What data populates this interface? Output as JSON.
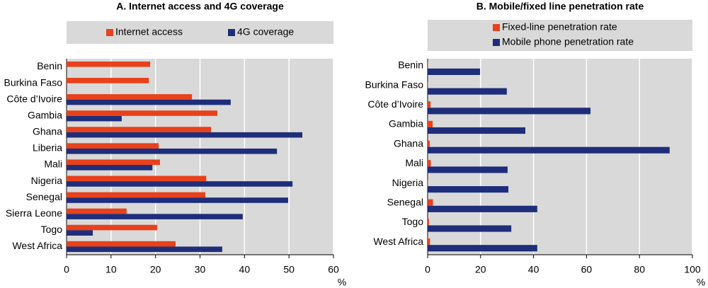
{
  "chart_data": [
    {
      "type": "bar",
      "orientation": "horizontal",
      "title": "A. Internet access and 4G coverage",
      "xlabel": "%",
      "categories": [
        "Benin",
        "Burkina Faso",
        "Côte d’Ivoire",
        "Gambia",
        "Ghana",
        "Liberia",
        "Mali",
        "Nigeria",
        "Senegal",
        "Sierra Leone",
        "Togo",
        "West Africa"
      ],
      "series": [
        {
          "name": "Internet access",
          "color": "#e8411b",
          "values": [
            18.8,
            18.5,
            28.2,
            33.9,
            32.5,
            20.7,
            21.0,
            31.4,
            31.2,
            13.5,
            20.4,
            24.5
          ]
        },
        {
          "name": "4G coverage",
          "color": "#1f2e7a",
          "values": [
            null,
            null,
            36.9,
            12.4,
            53.0,
            47.3,
            19.3,
            50.8,
            49.8,
            39.6,
            5.9,
            35.0
          ]
        }
      ],
      "xlim": [
        0,
        60
      ],
      "xticks": [
        0,
        10,
        20,
        30,
        40,
        50,
        60
      ],
      "grid": true
    },
    {
      "type": "bar",
      "orientation": "horizontal",
      "title": "B. Mobile/fixed line penetration rate",
      "xlabel": "%",
      "categories": [
        "Benin",
        "Burkina Faso",
        "Côte d’Ivoire",
        "Gambia",
        "Ghana",
        "Mali",
        "Nigeria",
        "Senegal",
        "Togo",
        "West Africa"
      ],
      "series": [
        {
          "name": "Fixed-line penetration rate",
          "color": "#e8411b",
          "values": [
            0.1,
            0.1,
            1.1,
            1.9,
            0.8,
            1.2,
            0.1,
            2.0,
            0.5,
            0.9
          ]
        },
        {
          "name": "Mobile phone penetration rate",
          "color": "#1f2e7a",
          "values": [
            19.8,
            29.9,
            61.5,
            36.9,
            91.4,
            30.2,
            30.5,
            41.4,
            31.6,
            41.4
          ]
        }
      ],
      "xlim": [
        0,
        100
      ],
      "xticks": [
        0,
        20,
        40,
        60,
        80,
        100
      ],
      "grid": true
    }
  ]
}
